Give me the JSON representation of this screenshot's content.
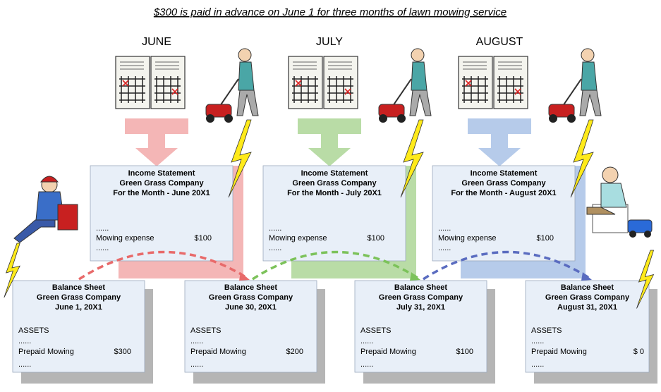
{
  "title": "$300 is paid in advance on June 1 for three months of lawn mowing service",
  "months": [
    "JUNE",
    "JULY",
    "AUGUST"
  ],
  "income_statements": [
    {
      "heading": "Income Statement",
      "company": "Green Grass Company",
      "period": "For the Month - June 20X1",
      "dots_top": "......",
      "item": "Mowing expense",
      "amount": "$100",
      "dots_bottom": "......"
    },
    {
      "heading": "Income Statement",
      "company": "Green Grass Company",
      "period": "For the Month - July 20X1",
      "dots_top": "......",
      "item": "Mowing expense",
      "amount": "$100",
      "dots_bottom": "......"
    },
    {
      "heading": "Income Statement",
      "company": "Green Grass Company",
      "period": "For the Month - August 20X1",
      "dots_top": "......",
      "item": "Mowing expense",
      "amount": "$100",
      "dots_bottom": "......"
    }
  ],
  "balance_sheets": [
    {
      "heading": "Balance Sheet",
      "company": "Green Grass Company",
      "date": "June 1, 20X1",
      "section": "ASSETS",
      "dots_top": "......",
      "item": "Prepaid Mowing",
      "amount": "$300",
      "dots_bottom": "......"
    },
    {
      "heading": "Balance Sheet",
      "company": "Green Grass Company",
      "date": "June 30, 20X1",
      "section": "ASSETS",
      "dots_top": "......",
      "item": "Prepaid Mowing",
      "amount": "$200",
      "dots_bottom": "......"
    },
    {
      "heading": "Balance Sheet",
      "company": "Green Grass Company",
      "date": "July 31, 20X1",
      "section": "ASSETS",
      "dots_top": "......",
      "item": "Prepaid Mowing",
      "amount": "$100",
      "dots_bottom": "......"
    },
    {
      "heading": "Balance Sheet",
      "company": "Green Grass Company",
      "date": "August 31, 20X1",
      "section": "ASSETS",
      "dots_top": "......",
      "item": "Prepaid Mowing",
      "amount": "$ 0",
      "dots_bottom": "......"
    }
  ]
}
